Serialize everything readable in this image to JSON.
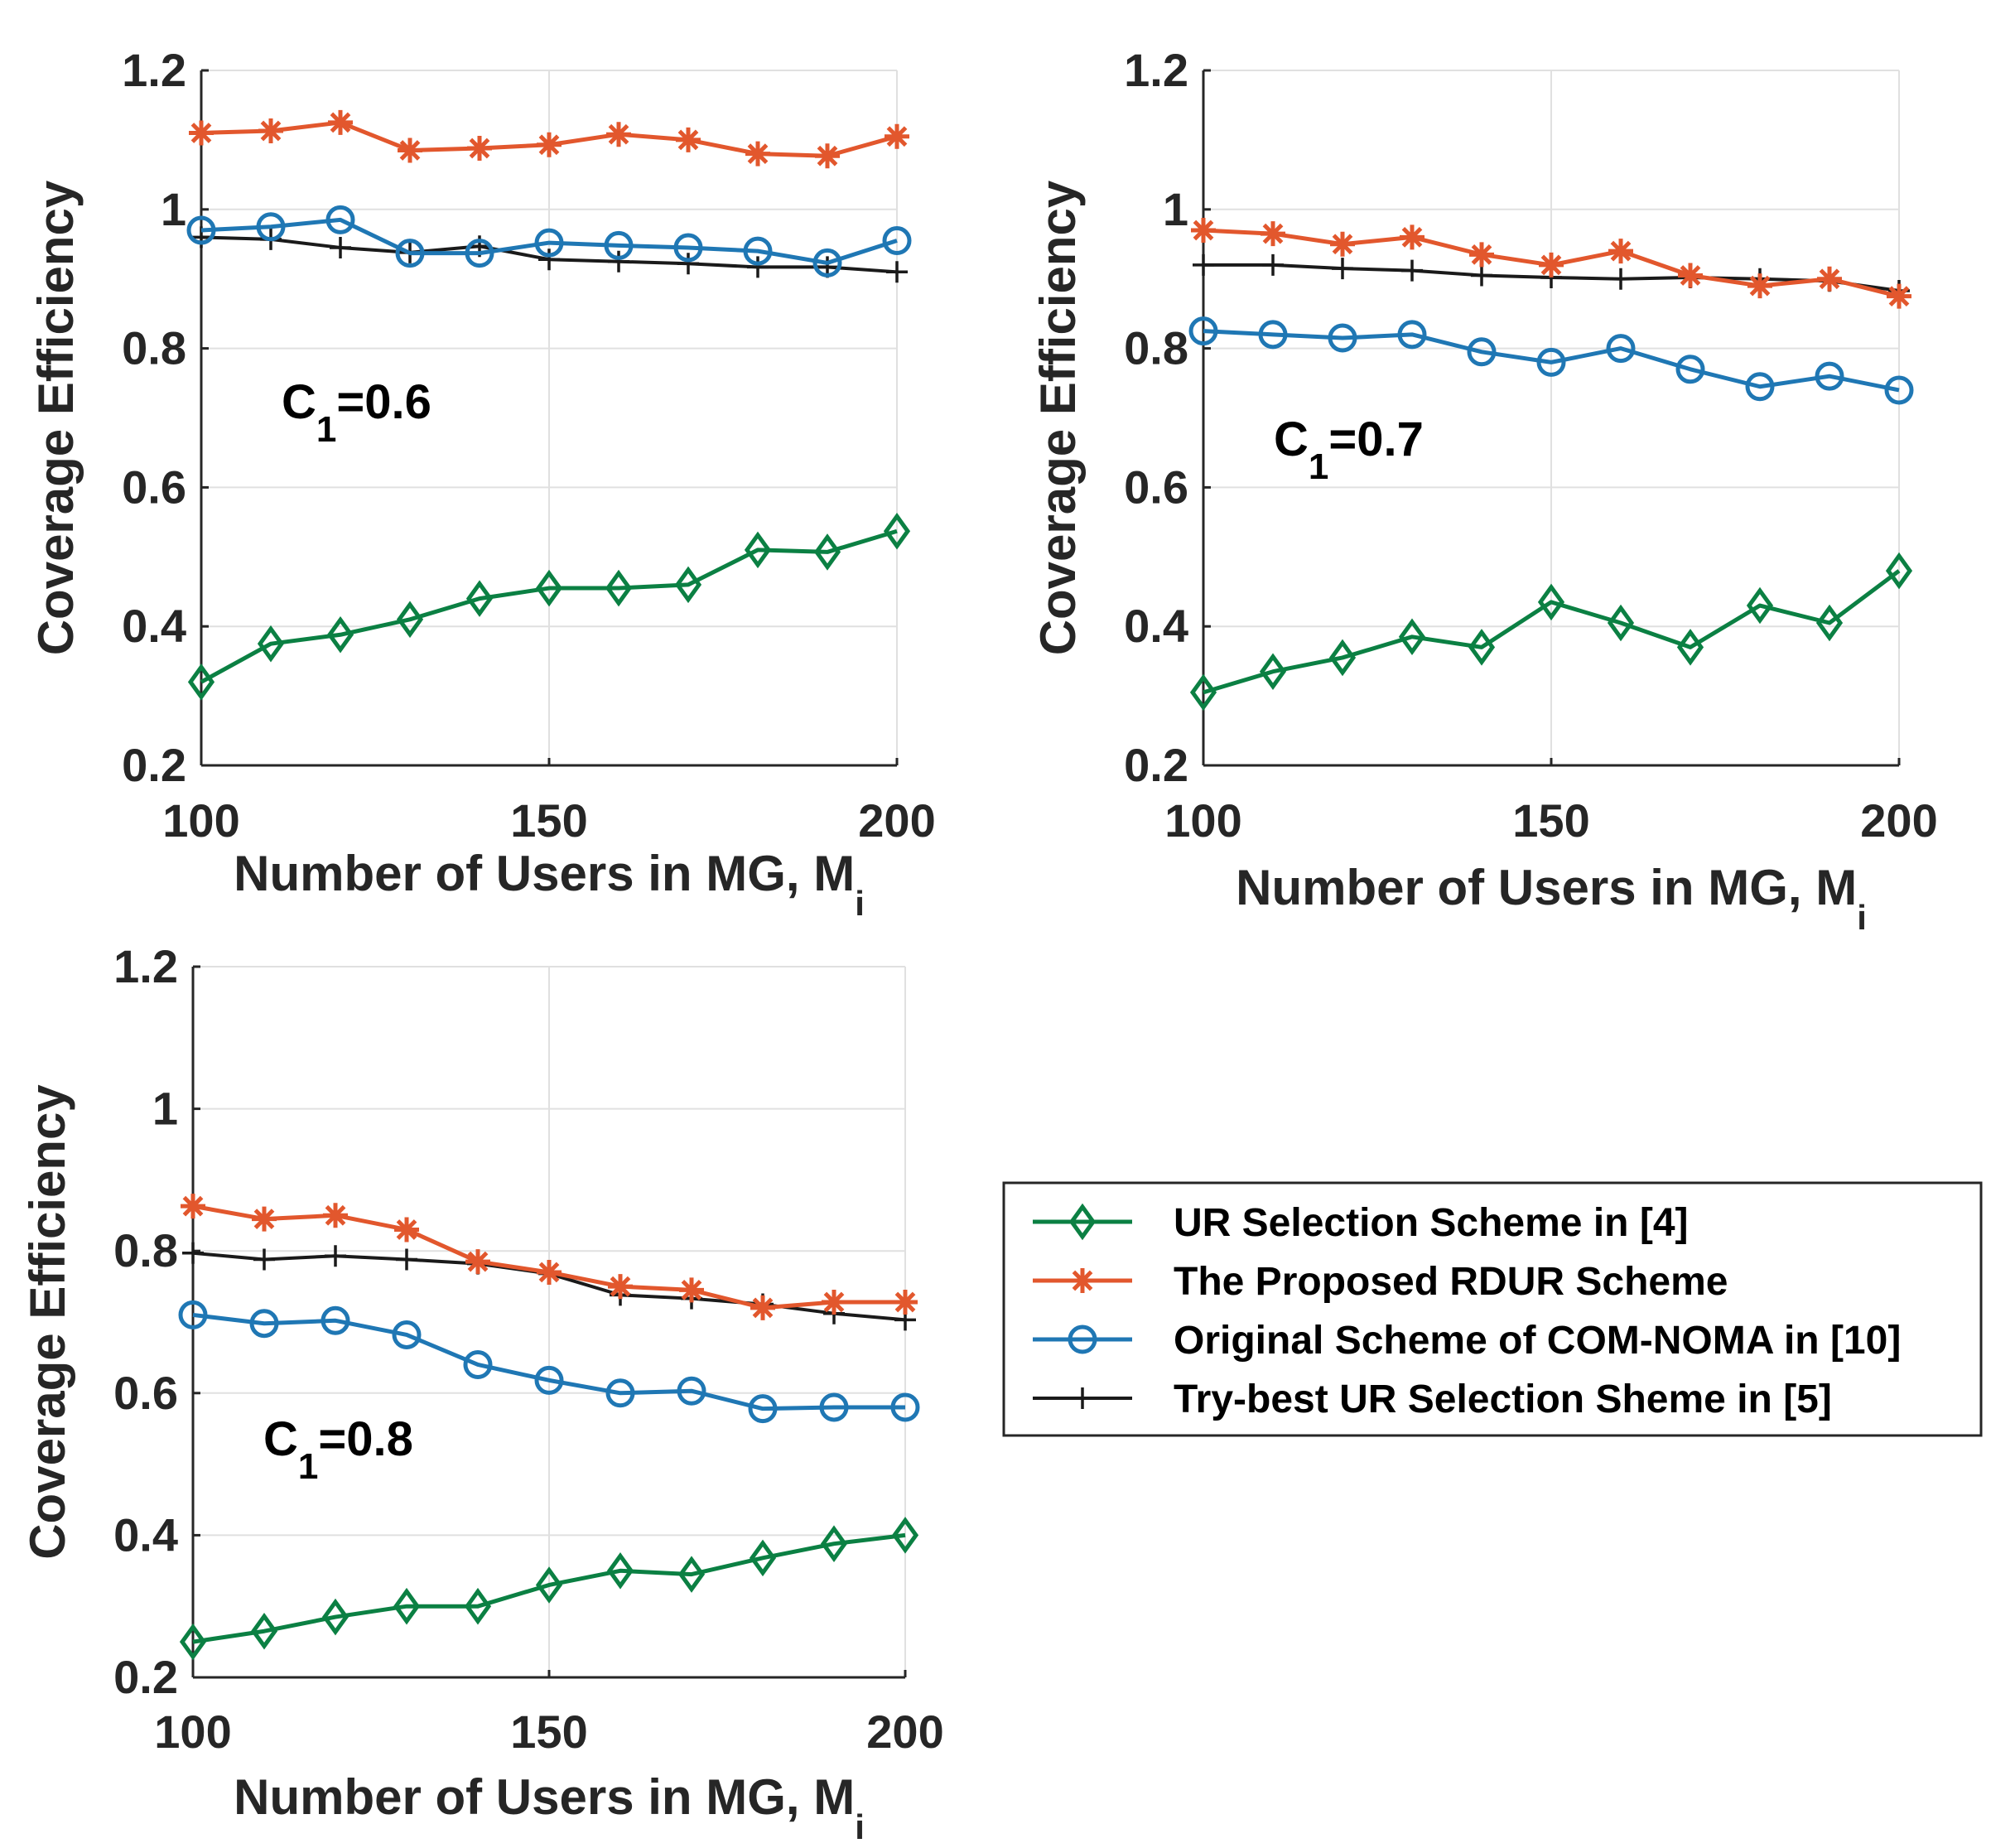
{
  "colors": {
    "ur": "#0b8043",
    "rdur": "#e2572d",
    "orig": "#1f77b4",
    "try": "#1a1a1a",
    "grid": "#e0e0e0",
    "axis": "#262626"
  },
  "legend": {
    "items": [
      {
        "key": "ur",
        "label": "UR Selection Scheme in [4]",
        "marker": "diamond"
      },
      {
        "key": "rdur",
        "label": "The Proposed RDUR Scheme",
        "marker": "asterisk"
      },
      {
        "key": "orig",
        "label": "Original Scheme of COM-NOMA in [10]",
        "marker": "circle"
      },
      {
        "key": "try",
        "label": "Try-best UR Selection Sheme in [5]",
        "marker": "plus"
      }
    ]
  },
  "chart_data": [
    {
      "type": "line",
      "annotation": {
        "main": "C",
        "sub": "1",
        "rest": "=0.6"
      },
      "xlabel": {
        "main": "Number of Users in MG, M",
        "sub": "i"
      },
      "ylabel": "Coverage Efficiency",
      "x": [
        100,
        110,
        120,
        130,
        140,
        150,
        160,
        170,
        180,
        190,
        200
      ],
      "xlim": [
        100,
        200
      ],
      "ylim": [
        0.2,
        1.2
      ],
      "xticks": [
        100,
        150,
        200
      ],
      "xtick_labels": [
        "100",
        "150",
        "200"
      ],
      "yticks": [
        0.2,
        0.4,
        0.6,
        0.8,
        1.0,
        1.2
      ],
      "ytick_labels": [
        "0.2",
        "0.4",
        "0.6",
        "0.8",
        "1",
        "1.2"
      ],
      "series": [
        {
          "key": "ur",
          "name": "UR Selection Scheme in [4]",
          "values": [
            0.32,
            0.375,
            0.388,
            0.41,
            0.44,
            0.455,
            0.455,
            0.46,
            0.51,
            0.507,
            0.537
          ]
        },
        {
          "key": "rdur",
          "name": "The Proposed RDUR Scheme",
          "values": [
            1.11,
            1.113,
            1.125,
            1.085,
            1.088,
            1.093,
            1.108,
            1.1,
            1.08,
            1.077,
            1.105
          ]
        },
        {
          "key": "orig",
          "name": "Original Scheme of COM-NOMA in [10]",
          "values": [
            0.97,
            0.975,
            0.985,
            0.937,
            0.937,
            0.952,
            0.948,
            0.945,
            0.94,
            0.923,
            0.955
          ]
        },
        {
          "key": "try",
          "name": "Try-best UR Selection Sheme in [5]",
          "values": [
            0.96,
            0.957,
            0.945,
            0.938,
            0.947,
            0.928,
            0.925,
            0.922,
            0.917,
            0.917,
            0.91
          ]
        }
      ]
    },
    {
      "type": "line",
      "annotation": {
        "main": "C",
        "sub": "1",
        "rest": "=0.7"
      },
      "xlabel": {
        "main": "Number of Users in MG, M",
        "sub": "i"
      },
      "ylabel": "Coverage Efficiency",
      "x": [
        100,
        110,
        120,
        130,
        140,
        150,
        160,
        170,
        180,
        190,
        200
      ],
      "xlim": [
        100,
        200
      ],
      "ylim": [
        0.2,
        1.2
      ],
      "xticks": [
        100,
        150,
        200
      ],
      "xtick_labels": [
        "100",
        "150",
        "200"
      ],
      "yticks": [
        0.2,
        0.4,
        0.6,
        0.8,
        1.0,
        1.2
      ],
      "ytick_labels": [
        "0.2",
        "0.4",
        "0.6",
        "0.8",
        "1",
        "1.2"
      ],
      "series": [
        {
          "key": "ur",
          "name": "UR Selection Scheme in [4]",
          "values": [
            0.305,
            0.335,
            0.355,
            0.385,
            0.37,
            0.435,
            0.405,
            0.37,
            0.43,
            0.405,
            0.48
          ]
        },
        {
          "key": "rdur",
          "name": "The Proposed RDUR Scheme",
          "values": [
            0.97,
            0.965,
            0.95,
            0.96,
            0.935,
            0.92,
            0.94,
            0.905,
            0.89,
            0.9,
            0.875
          ]
        },
        {
          "key": "orig",
          "name": "Original Scheme of COM-NOMA in [10]",
          "values": [
            0.825,
            0.82,
            0.815,
            0.82,
            0.795,
            0.78,
            0.8,
            0.77,
            0.745,
            0.76,
            0.74
          ]
        },
        {
          "key": "try",
          "name": "Try-best UR Selection Sheme in [5]",
          "values": [
            0.92,
            0.92,
            0.915,
            0.912,
            0.905,
            0.902,
            0.9,
            0.902,
            0.9,
            0.897,
            0.883
          ]
        }
      ]
    },
    {
      "type": "line",
      "annotation": {
        "main": "C",
        "sub": "1",
        "rest": "=0.8"
      },
      "xlabel": {
        "main": "Number of Users in MG, M",
        "sub": "i"
      },
      "ylabel": "Coverage Efficiency",
      "x": [
        100,
        110,
        120,
        130,
        140,
        150,
        160,
        170,
        180,
        190,
        200
      ],
      "xlim": [
        100,
        200
      ],
      "ylim": [
        0.2,
        1.2
      ],
      "xticks": [
        100,
        150,
        200
      ],
      "xtick_labels": [
        "100",
        "150",
        "200"
      ],
      "yticks": [
        0.2,
        0.4,
        0.6,
        0.8,
        1.0,
        1.2
      ],
      "ytick_labels": [
        "0.2",
        "0.4",
        "0.6",
        "0.8",
        "1",
        "1.2"
      ],
      "series": [
        {
          "key": "ur",
          "name": "UR Selection Scheme in [4]",
          "values": [
            0.25,
            0.265,
            0.285,
            0.3,
            0.3,
            0.33,
            0.35,
            0.345,
            0.368,
            0.388,
            0.4
          ]
        },
        {
          "key": "rdur",
          "name": "The Proposed RDUR Scheme",
          "values": [
            0.863,
            0.845,
            0.85,
            0.83,
            0.785,
            0.77,
            0.75,
            0.745,
            0.72,
            0.728,
            0.728
          ]
        },
        {
          "key": "orig",
          "name": "Original Scheme of COM-NOMA in [10]",
          "values": [
            0.71,
            0.698,
            0.702,
            0.682,
            0.64,
            0.618,
            0.6,
            0.603,
            0.578,
            0.58,
            0.58
          ]
        },
        {
          "key": "try",
          "name": "Try-best UR Selection Sheme in [5]",
          "values": [
            0.797,
            0.788,
            0.793,
            0.788,
            0.782,
            0.768,
            0.738,
            0.733,
            0.725,
            0.712,
            0.703
          ]
        }
      ]
    }
  ]
}
